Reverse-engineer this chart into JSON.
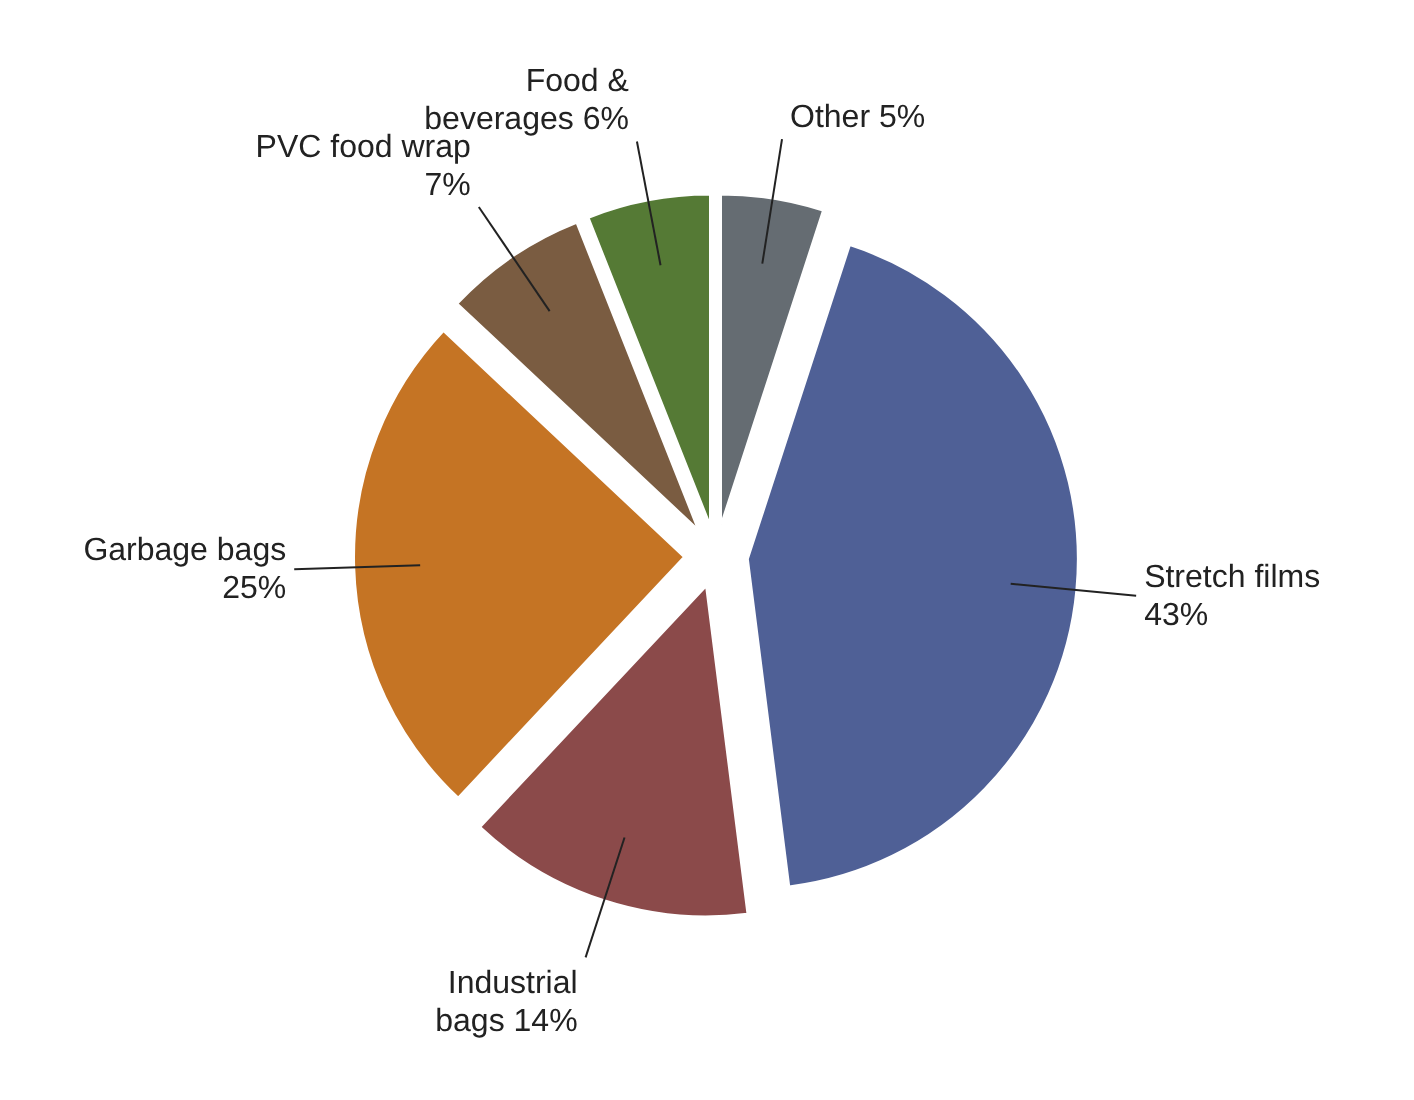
{
  "chart_data": {
    "type": "pie",
    "categories": [
      "Stretch films",
      "Industrial bags",
      "Garbage bags",
      "PVC food wrap",
      "Food & beverages",
      "Other"
    ],
    "values": [
      43,
      14,
      25,
      7,
      6,
      5
    ],
    "value_labels": [
      "43%",
      "14%",
      "25%",
      "7%",
      "6%",
      "5%"
    ],
    "colors": [
      "#4f6096",
      "#8b4a4a",
      "#c57424",
      "#7a5c41",
      "#557a35",
      "#656c72"
    ]
  }
}
